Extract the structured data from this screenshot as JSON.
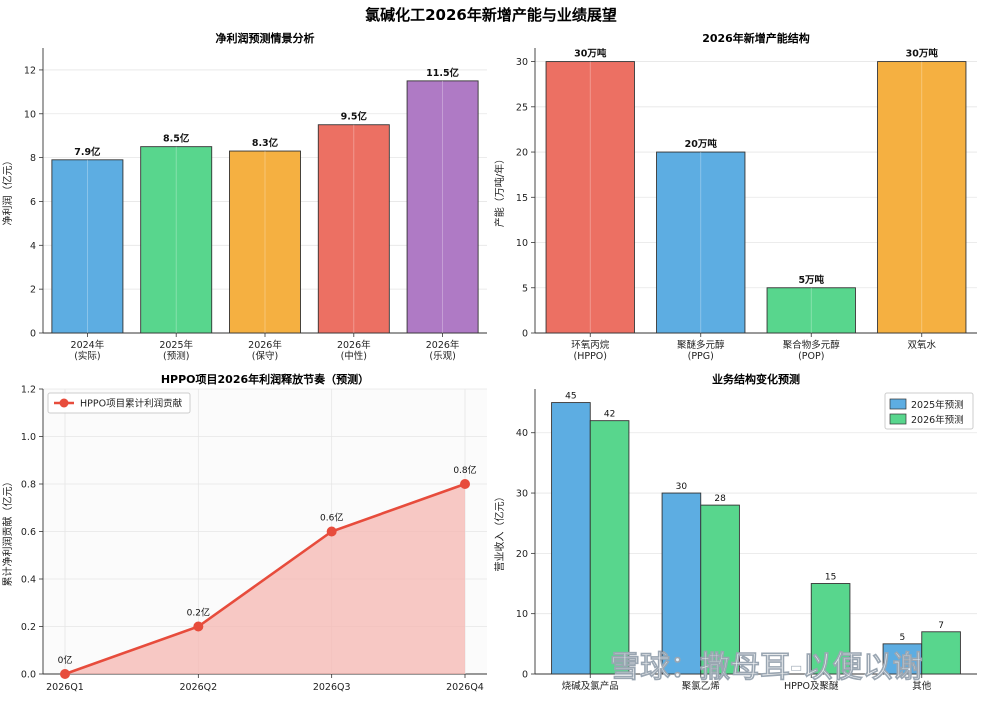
{
  "suptitle": "氯碱化工2026年新增产能与业绩展望",
  "watermark": "雪球：撒母耳-以便以谢",
  "chart_data": [
    {
      "id": "net-profit",
      "type": "bar",
      "title": "净利润预测情景分析",
      "ylabel": "净利润（亿元）",
      "ylim": [
        0,
        13
      ],
      "yticks": [
        0,
        2,
        4,
        6,
        8,
        10,
        12
      ],
      "categories": [
        [
          "2024年",
          "(实际)"
        ],
        [
          "2025年",
          "(预测)"
        ],
        [
          "2026年",
          "(保守)"
        ],
        [
          "2026年",
          "(中性)"
        ],
        [
          "2026年",
          "(乐观)"
        ]
      ],
      "values": [
        7.9,
        8.5,
        8.3,
        9.5,
        11.5
      ],
      "labels": [
        "7.9亿",
        "8.5亿",
        "8.3亿",
        "9.5亿",
        "11.5亿"
      ],
      "colors": [
        "#5DADE2",
        "#58D68D",
        "#F5B041",
        "#EC7063",
        "#AF7AC5"
      ],
      "grid": true
    },
    {
      "id": "capacity",
      "type": "bar",
      "title": "2026年新增产能结构",
      "ylabel": "产能（万吨/年）",
      "ylim": [
        0,
        31.5
      ],
      "yticks": [
        0,
        5,
        10,
        15,
        20,
        25,
        30
      ],
      "categories": [
        [
          "环氧丙烷",
          "(HPPO)"
        ],
        [
          "聚醚多元醇",
          "(PPG)"
        ],
        [
          "聚合物多元醇",
          "(POP)"
        ],
        [
          "双氧水"
        ]
      ],
      "values": [
        30,
        20,
        5,
        30
      ],
      "labels": [
        "30万吨",
        "20万吨",
        "5万吨",
        "30万吨"
      ],
      "colors": [
        "#EC7063",
        "#5DADE2",
        "#58D68D",
        "#F5B041"
      ],
      "grid": true
    },
    {
      "id": "hppo-release",
      "type": "line",
      "title": "HPPO项目2026年利润释放节奏（预测）",
      "ylabel": "累计净利润贡献（亿元）",
      "ylim": [
        0,
        1.2
      ],
      "yticks": [
        0.0,
        0.2,
        0.4,
        0.6,
        0.8,
        1.0,
        1.2
      ],
      "ytick_labels": [
        "0.0",
        "0.2",
        "0.4",
        "0.6",
        "0.8",
        "1.0",
        "1.2"
      ],
      "x": [
        "2026Q1",
        "2026Q2",
        "2026Q3",
        "2026Q4"
      ],
      "values": [
        0,
        0.2,
        0.6,
        0.8
      ],
      "labels": [
        "0亿",
        "0.2亿",
        "0.6亿",
        "0.8亿"
      ],
      "series_name": "HPPO项目累计利润贡献",
      "color": "#E74C3C",
      "fill": "#F5B7B1",
      "legend": "top-left",
      "grid": true
    },
    {
      "id": "business-structure",
      "type": "bar",
      "title": "业务结构变化预测",
      "ylabel": "营业收入（亿元）",
      "ylim": [
        0,
        47.25
      ],
      "yticks": [
        0,
        10,
        20,
        30,
        40
      ],
      "categories": [
        "烧碱及氯产品",
        "聚氯乙烯",
        "HPPO及聚醚",
        "其他"
      ],
      "series": [
        {
          "name": "2025年预测",
          "values": [
            45,
            30,
            0,
            5
          ],
          "labels": [
            "45",
            "30",
            "",
            "5"
          ],
          "color": "#5DADE2"
        },
        {
          "name": "2026年预测",
          "values": [
            42,
            28,
            15,
            7
          ],
          "labels": [
            "42",
            "28",
            "15",
            "7"
          ],
          "color": "#58D68D"
        }
      ],
      "legend": "top-right",
      "grid": true
    }
  ]
}
